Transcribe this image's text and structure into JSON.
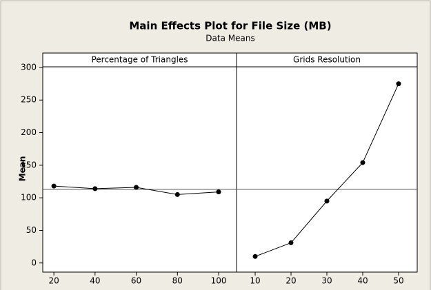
{
  "header": {
    "title": "Main Effects Plot for File Size (MB)",
    "subtitle": "Data Means"
  },
  "chart_data": [
    {
      "type": "line",
      "title": "Percentage of Triangles",
      "ylabel": "Mean",
      "x": [
        20,
        40,
        60,
        80,
        100
      ],
      "values": [
        118,
        114,
        116,
        105,
        109
      ],
      "color": "#000000",
      "xlim": [
        14.6,
        108.7
      ],
      "xticks": [
        20,
        40,
        60,
        80,
        100
      ],
      "ylim": [
        -14,
        301
      ],
      "yticks": [
        0,
        50,
        100,
        150,
        200,
        250,
        300
      ],
      "reference_line": 113
    },
    {
      "type": "line",
      "title": "Grids Resolution",
      "x": [
        10,
        20,
        30,
        40,
        50
      ],
      "values": [
        10,
        31,
        95,
        154,
        275
      ],
      "color": "#000000",
      "xlim": [
        4.8,
        55.2
      ],
      "xticks": [
        10,
        20,
        30,
        40,
        50
      ],
      "ylim": [
        -14,
        301
      ],
      "reference_line": 113
    }
  ]
}
